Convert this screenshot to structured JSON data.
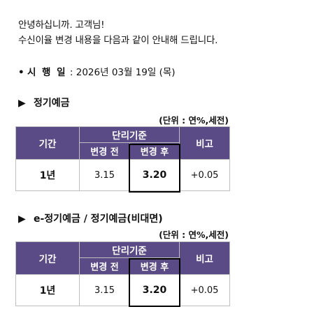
{
  "greeting": {
    "line1": "안녕하십니까. 고객님!",
    "line2": "수신이율 변경 내용을 다음과 같이 안내해 드립니다."
  },
  "effective": {
    "bullet": "•",
    "label": "시 행 일",
    "separator": " : ",
    "date": "2026년 03월 19일 (목)"
  },
  "sections": [
    {
      "title": "정기예금",
      "unit": "(단위 : 연%,세전)",
      "headers": {
        "period": "기간",
        "group": "단리기준",
        "before": "변경 전",
        "after": "변경 후",
        "note": "비고"
      },
      "row": {
        "period": "1년",
        "before": "3.15",
        "after": "3.20",
        "note": "+0.05"
      }
    },
    {
      "title": "e-정기예금 / 정기예금(비대면)",
      "unit": "(단위 : 연%,세전)",
      "headers": {
        "period": "기간",
        "group": "단리기준",
        "before": "변경 전",
        "after": "변경 후",
        "note": "비고"
      },
      "row": {
        "period": "1년",
        "before": "3.15",
        "after": "3.20",
        "note": "+0.05"
      }
    }
  ],
  "colors": {
    "header_bg": "#5a4a86",
    "header_text": "#ffffff",
    "highlight_border": "#000000"
  }
}
